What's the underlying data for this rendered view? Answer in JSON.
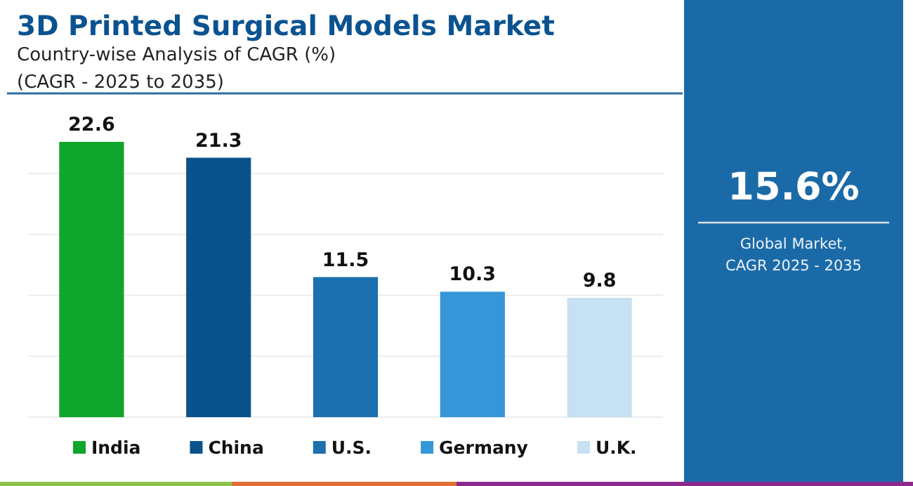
{
  "chart_data": [
    {
      "type": "bar",
      "title": "3D Printed Surgical Models Market",
      "subtitle": "Country-wise Analysis of CAGR (%)\n(CAGR - 2025 to 2035)",
      "categories": [
        "India",
        "China",
        "U.S.",
        "Germany",
        "U.K."
      ],
      "values": [
        22.6,
        21.3,
        11.5,
        10.3,
        9.8
      ],
      "colors": [
        "#10a52c",
        "#0a528b",
        "#1c70ae",
        "#3597d7",
        "#c6e1f1"
      ],
      "yticks": [
        {
          "value": 0,
          "label": null
        },
        {
          "value": 5,
          "label": null
        },
        {
          "value": 10,
          "label": null
        },
        {
          "value": 15,
          "label": null
        },
        {
          "value": 20,
          "label": null
        }
      ],
      "grid": "y",
      "data_labels": true
    },
    {
      "type": "other",
      "title": "15.6%",
      "subtitle": "Global Market, CAGR 2025 - 2035"
    }
  ]
}
